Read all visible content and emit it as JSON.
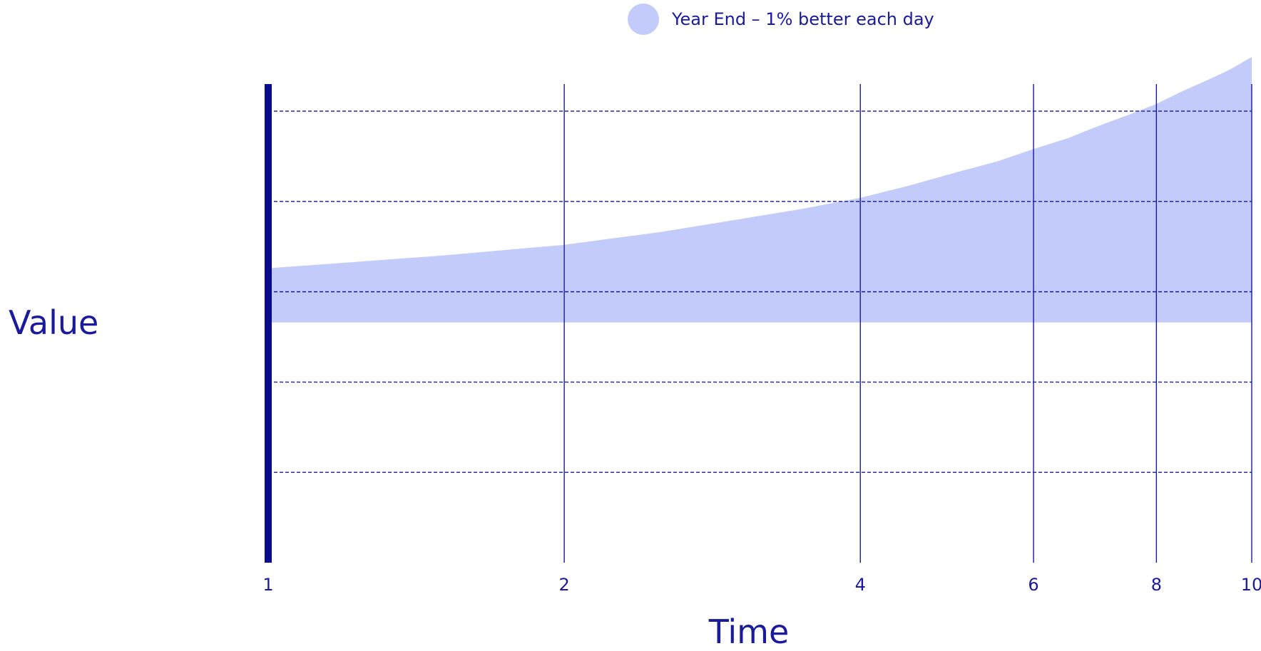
{
  "chart_data": {
    "type": "area",
    "xlabel": "Time",
    "ylabel": "Value",
    "x_scale": "log",
    "x_ticks": [
      "1",
      "2",
      "4",
      "6",
      "8",
      "10"
    ],
    "xlim": [
      1,
      10
    ],
    "ylim": [
      0.985,
      1.0115
    ],
    "y_gridlines": [
      0.99,
      0.995,
      1.0,
      1.005,
      1.01
    ],
    "grid": "vertical solid at x ticks, horizontal dashed",
    "legend_position": "top-center",
    "series": [
      {
        "name": "Year End – 1% better each day",
        "color": "#c2cbf9",
        "baseline": 0.9983,
        "x": [
          1,
          1.5,
          2,
          2.5,
          3,
          3.5,
          4,
          4.5,
          5,
          5.5,
          6,
          6.5,
          7,
          7.5,
          8,
          8.5,
          9,
          9.5,
          10
        ],
        "values": [
          1.0013,
          1.002,
          1.0026,
          1.0033,
          1.004,
          1.0046,
          1.0052,
          1.0059,
          1.0066,
          1.0072,
          1.0079,
          1.0085,
          1.0092,
          1.0098,
          1.0104,
          1.0111,
          1.0117,
          1.0123,
          1.013
        ]
      }
    ]
  },
  "colors": {
    "text": "#1a1a9e",
    "axis": "#0a0a8c",
    "grid": "#1a1a9e",
    "fill": "#c2cbf9"
  }
}
